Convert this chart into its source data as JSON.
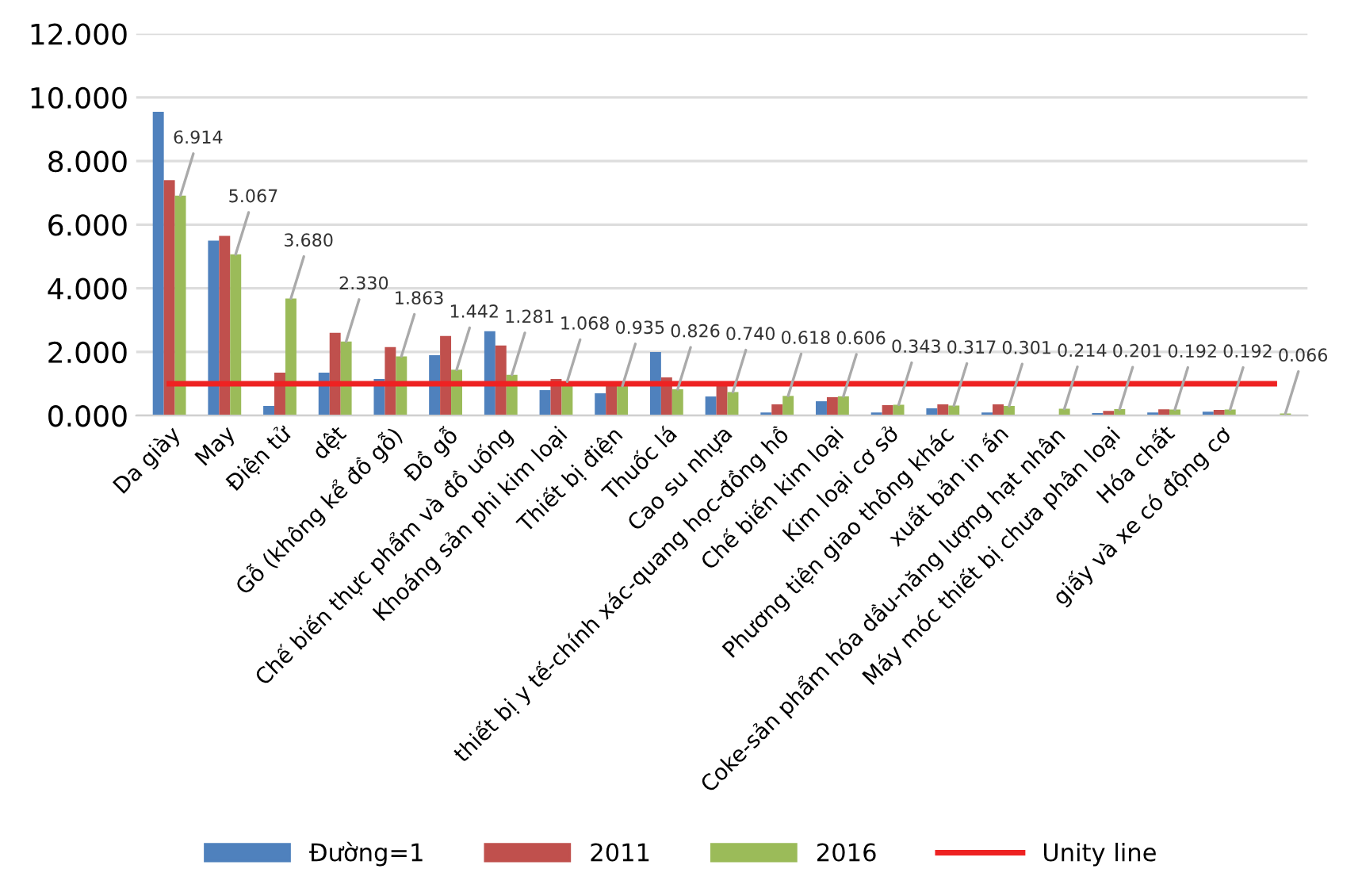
{
  "chart_data": {
    "type": "bar",
    "categories": [
      "Da giày",
      "May",
      "Điện tử",
      "dệt",
      "Gỗ (không kể đồ gỗ)",
      "Đồ gỗ",
      "Chế biến thực phẩm và đồ uống",
      "Khoáng sản phi kim loại",
      "Thiết bị điện",
      "Thuốc lá",
      "Cao su nhựa",
      "thiết bị y tế-chính xác-quang học-đồng hồ",
      "Chế biến kim loại",
      "Kim loại cơ sở",
      "Phương tiện giao thông khác",
      "xuất bản in ấn",
      "Coke-sản phẩm hóa dầu-năng lượng hạt nhân",
      "Máy móc thiết bị chưa phân loại",
      "Hóa chất",
      "giấy và xe có động cơ",
      null
    ],
    "series": [
      {
        "name": "Đường=1",
        "color": "#4f81bd",
        "values": [
          9.55,
          5.5,
          0.3,
          1.35,
          1.15,
          1.9,
          2.65,
          0.8,
          0.7,
          2.0,
          0.6,
          0.1,
          0.45,
          0.1,
          0.23,
          0.1,
          null,
          0.08,
          0.1,
          0.12,
          null
        ]
      },
      {
        "name": "2011",
        "color": "#c0504d",
        "values": [
          7.4,
          5.65,
          1.35,
          2.6,
          2.15,
          2.5,
          2.2,
          1.15,
          0.95,
          1.2,
          1.0,
          0.35,
          0.58,
          0.33,
          0.35,
          0.35,
          null,
          0.15,
          0.2,
          0.18,
          null
        ]
      },
      {
        "name": "2016",
        "color": "#9bbb59",
        "values": [
          6.914,
          5.067,
          3.68,
          2.33,
          1.863,
          1.442,
          1.281,
          1.068,
          0.935,
          0.826,
          0.74,
          0.618,
          0.606,
          0.343,
          0.317,
          0.301,
          0.214,
          0.201,
          0.192,
          0.192,
          0.066
        ],
        "value_labels": [
          "6.914",
          "5.067",
          "3.680",
          "2.330",
          "1.863",
          "1.442",
          "1.281",
          "1.068",
          "0.935",
          "0.826",
          "0.740",
          "0.618",
          "0.606",
          "0.343",
          "0.317",
          "0.301",
          "0.214",
          "0.201",
          "0.192",
          "0.192",
          "0.066"
        ]
      },
      {
        "name": "Unity line",
        "type": "line",
        "color": "#ee2222",
        "values": [
          1,
          1,
          1,
          1,
          1,
          1,
          1,
          1,
          1,
          1,
          1,
          1,
          1,
          1,
          1,
          1,
          1,
          1,
          1,
          1,
          1
        ]
      }
    ],
    "ylim": [
      0,
      12
    ],
    "yticks": [
      {
        "value": 0,
        "label": "0.000"
      },
      {
        "value": 2,
        "label": "2.000"
      },
      {
        "value": 4,
        "label": "4.000"
      },
      {
        "value": 6,
        "label": "6.000"
      },
      {
        "value": 8,
        "label": "8.000"
      },
      {
        "value": 10,
        "label": "10.000"
      },
      {
        "value": 12,
        "label": "12.000"
      }
    ],
    "grid": "y",
    "legend": "bottom"
  }
}
